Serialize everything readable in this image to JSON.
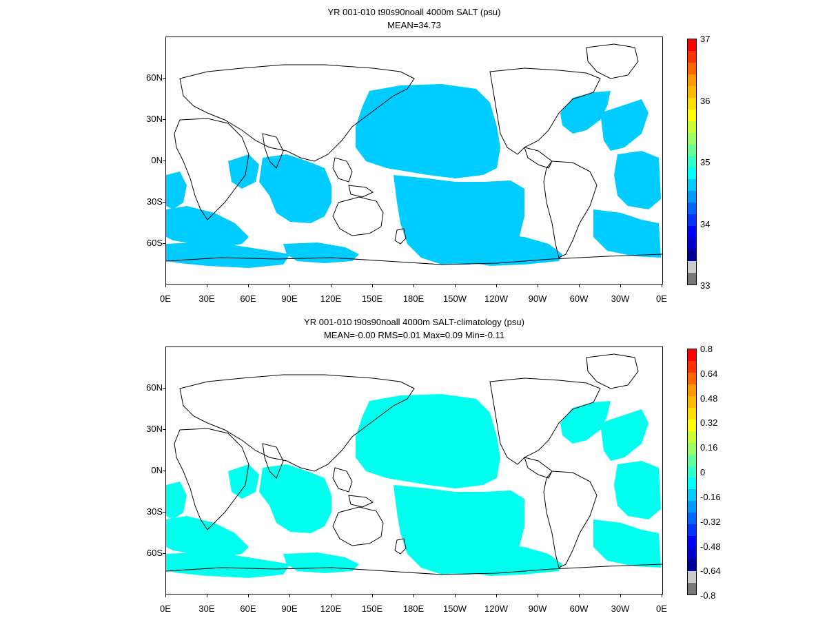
{
  "panels": [
    {
      "title_line1": "YR 001-010 t90s90noall 4000m SALT (psu)",
      "title_line2": "MEAN=34.73",
      "lat_labels": [
        "60N",
        "30N",
        "0N",
        "30S",
        "60S"
      ],
      "lon_labels": [
        "0E",
        "30E",
        "60E",
        "90E",
        "120E",
        "150E",
        "180E",
        "150W",
        "120W",
        "90W",
        "60W",
        "30W",
        "0E"
      ],
      "colorbar_labels": [
        "37",
        "36",
        "35",
        "34",
        "33"
      ],
      "colorbar_colors": [
        "#ff0000",
        "#ff3300",
        "#ff6600",
        "#ff9900",
        "#ffbb00",
        "#ffdd00",
        "#ffff00",
        "#ccff33",
        "#99ff66",
        "#66ff99",
        "#33ffcc",
        "#00ffff",
        "#00ccff",
        "#0099ff",
        "#0066ff",
        "#0033ff",
        "#0000ff",
        "#0000cc",
        "#000099",
        "#cccccc",
        "#777777"
      ],
      "ocean_color": "#00ccff"
    },
    {
      "title_line1": "YR 001-010 t90s90noall 4000m SALT-climatology (psu)",
      "title_line2": "MEAN=-0.00   RMS=0.01   Max=0.09   Min=-0.11",
      "lat_labels": [
        "60N",
        "30N",
        "0N",
        "30S",
        "60S"
      ],
      "lon_labels": [
        "0E",
        "30E",
        "60E",
        "90E",
        "120E",
        "150E",
        "180E",
        "150W",
        "120W",
        "90W",
        "60W",
        "30W",
        "0E"
      ],
      "colorbar_labels": [
        "0.8",
        "0.64",
        "0.48",
        "0.32",
        "0.16",
        "0",
        "-0.16",
        "-0.32",
        "-0.48",
        "-0.64",
        "-0.8"
      ],
      "colorbar_colors": [
        "#ff0000",
        "#ff3300",
        "#ff6600",
        "#ff9900",
        "#ffbb00",
        "#ffdd00",
        "#ffff00",
        "#ccff33",
        "#99ff66",
        "#66ff99",
        "#33ffcc",
        "#00ffff",
        "#00ccff",
        "#0099ff",
        "#0066ff",
        "#0033ff",
        "#0000ff",
        "#0000cc",
        "#000099",
        "#cccccc",
        "#777777"
      ],
      "ocean_color": "#00ffee"
    }
  ]
}
